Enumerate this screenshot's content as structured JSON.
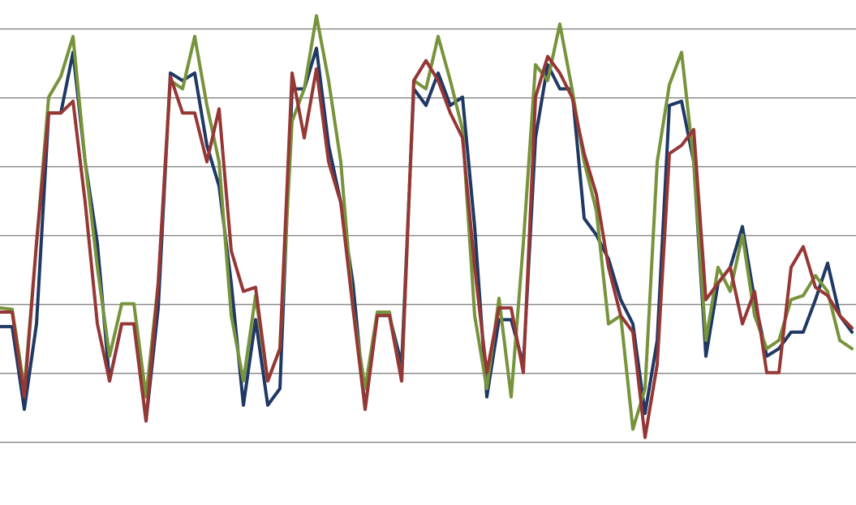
{
  "chart_data": {
    "type": "line",
    "x": [
      0,
      15,
      30,
      45,
      60,
      75,
      90,
      105,
      120,
      135,
      150,
      165,
      180,
      195,
      210,
      225,
      240,
      255,
      270,
      285,
      300,
      315,
      330,
      345,
      360,
      375,
      390,
      405,
      420,
      435,
      450,
      465,
      480,
      495,
      510,
      525,
      540,
      555,
      570,
      585,
      600,
      615,
      630,
      645,
      660,
      675,
      690,
      705,
      720,
      735,
      750,
      765,
      780,
      795,
      810,
      825,
      840,
      855,
      870,
      885,
      900,
      915,
      930,
      945,
      960,
      975,
      990,
      1005,
      1020,
      1035,
      1050
    ],
    "xlim": [
      0,
      1055
    ],
    "ylim": [
      -0.91,
      6.42
    ],
    "yticks": [
      0,
      1,
      2,
      3,
      4,
      5,
      6
    ],
    "grid": true,
    "series": [
      {
        "color": "#1f3864",
        "values": [
          1.68,
          1.68,
          0.48,
          1.72,
          4.78,
          4.78,
          5.66,
          4.07,
          2.89,
          0.89,
          1.72,
          1.72,
          0.31,
          1.95,
          5.36,
          5.25,
          5.36,
          4.31,
          3.72,
          2.31,
          0.54,
          1.78,
          0.54,
          0.78,
          5.13,
          5.13,
          5.72,
          4.31,
          3.48,
          2.31,
          0.48,
          1.84,
          1.84,
          1.13,
          5.13,
          4.89,
          5.36,
          4.89,
          5.01,
          3.13,
          0.66,
          1.78,
          1.78,
          1.13,
          4.42,
          5.48,
          5.13,
          5.13,
          3.25,
          3.01,
          2.66,
          2.07,
          1.72,
          0.42,
          1.48,
          4.89,
          4.95,
          4.07,
          1.25,
          2.31,
          2.54,
          3.13,
          2.07,
          1.25,
          1.36,
          1.6,
          1.6,
          2.07,
          2.6,
          1.84,
          1.6
        ]
      },
      {
        "color": "#77933c",
        "values": [
          1.95,
          1.93,
          0.78,
          2.89,
          5.01,
          5.31,
          5.89,
          4.07,
          2.54,
          1.25,
          2.01,
          2.01,
          0.66,
          2.31,
          5.25,
          5.13,
          5.89,
          4.89,
          4.07,
          1.84,
          0.89,
          2.13,
          0.89,
          1.36,
          4.66,
          5.13,
          6.19,
          5.25,
          4.07,
          1.95,
          0.78,
          1.89,
          1.89,
          0.89,
          5.25,
          5.13,
          5.89,
          5.25,
          4.54,
          1.84,
          0.78,
          2.09,
          0.66,
          2.89,
          5.48,
          5.25,
          6.07,
          5.13,
          4.07,
          3.36,
          1.72,
          1.84,
          0.19,
          0.78,
          4.07,
          5.19,
          5.66,
          4.07,
          1.48,
          2.54,
          2.19,
          3.01,
          1.84,
          1.36,
          1.48,
          2.07,
          2.13,
          2.42,
          2.19,
          1.48,
          1.36
        ]
      },
      {
        "color": "#953735",
        "values": [
          1.89,
          1.89,
          0.66,
          2.89,
          4.78,
          4.78,
          4.95,
          3.48,
          1.72,
          0.89,
          1.72,
          1.72,
          0.31,
          2.31,
          5.31,
          4.78,
          4.78,
          4.07,
          4.84,
          2.78,
          2.19,
          2.25,
          0.89,
          1.36,
          5.36,
          4.42,
          5.42,
          4.07,
          3.48,
          1.95,
          0.48,
          1.84,
          1.84,
          0.89,
          5.25,
          5.54,
          5.25,
          4.78,
          4.42,
          2.54,
          1.01,
          1.95,
          1.95,
          1.01,
          5.01,
          5.6,
          5.36,
          5.01,
          4.19,
          3.6,
          2.54,
          1.84,
          1.6,
          0.07,
          1.13,
          4.19,
          4.31,
          4.54,
          2.07,
          2.31,
          2.54,
          1.72,
          2.19,
          1.01,
          1.01,
          2.54,
          2.84,
          2.25,
          2.13,
          1.84,
          1.66
        ]
      }
    ]
  }
}
